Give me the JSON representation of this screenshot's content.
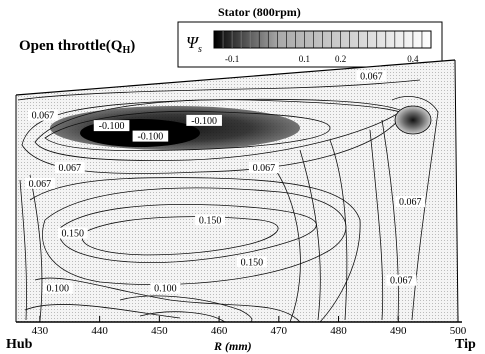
{
  "chart_data": {
    "type": "contour",
    "title": "Stator (800rpm)",
    "condition_label": "Open throttle(Q",
    "condition_subscript": "H",
    "condition_close": ")",
    "colorbar": {
      "symbol": "Ψ",
      "symbol_subscript": "s",
      "range": [
        -0.15,
        0.45
      ],
      "tick_labels": [
        "-0.1",
        "0.1",
        "0.2",
        "0.4"
      ],
      "tick_values": [
        -0.1,
        0.1,
        0.2,
        0.4
      ],
      "gradient_colors": [
        "#000000",
        "#ffffff"
      ]
    },
    "xlabel": "R (mm)",
    "xlim": [
      426,
      500
    ],
    "x_ticks": [
      430,
      440,
      450,
      460,
      470,
      480,
      490,
      500
    ],
    "x_tick_labels": [
      "430",
      "440",
      "450",
      "460",
      "470",
      "480",
      "490",
      "500"
    ],
    "left_end_label": "Hub",
    "right_end_label": "Tip",
    "contour_labels": [
      {
        "text": "0.067",
        "x": 430.5,
        "y": 0.78
      },
      {
        "text": "0.067",
        "x": 485.5,
        "y": 0.93
      },
      {
        "text": "-0.100",
        "x": 442.0,
        "y": 0.74
      },
      {
        "text": "-0.100",
        "x": 457.5,
        "y": 0.76
      },
      {
        "text": "-0.100",
        "x": 448.5,
        "y": 0.7
      },
      {
        "text": "0.067",
        "x": 430.0,
        "y": 0.52
      },
      {
        "text": "0.067",
        "x": 435.0,
        "y": 0.58
      },
      {
        "text": "0.067",
        "x": 467.5,
        "y": 0.58
      },
      {
        "text": "0.067",
        "x": 492.0,
        "y": 0.45
      },
      {
        "text": "0.067",
        "x": 490.5,
        "y": 0.15
      },
      {
        "text": "0.150",
        "x": 435.5,
        "y": 0.33
      },
      {
        "text": "0.150",
        "x": 458.5,
        "y": 0.38
      },
      {
        "text": "0.150",
        "x": 465.5,
        "y": 0.22
      },
      {
        "text": "0.100",
        "x": 433.0,
        "y": 0.12
      },
      {
        "text": "0.100",
        "x": 451.0,
        "y": 0.12
      }
    ],
    "contour_levels": [
      -0.1,
      0.0,
      0.067,
      0.1,
      0.15
    ],
    "y_axis_labels": "none"
  }
}
